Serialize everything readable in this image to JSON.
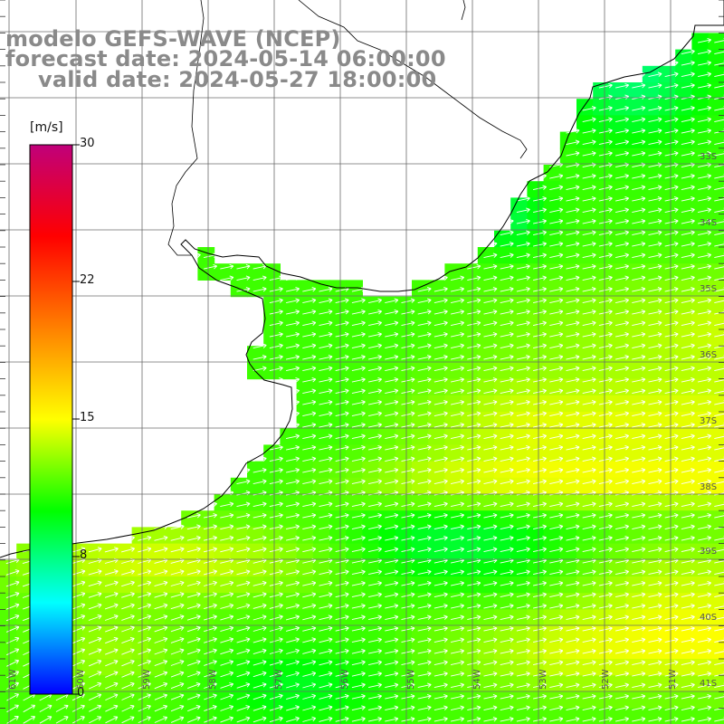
{
  "title": {
    "line1": "modelo GEFS-WAVE (NCEP)",
    "line2": "forecast date: 2024-05-14 06:00:00",
    "line3": "valid date: 2024-05-27 18:00:00"
  },
  "colorbar": {
    "units": "[m/s]",
    "min": 0,
    "max": 30,
    "ticks": [
      "30",
      "22",
      "15",
      "8",
      "0"
    ],
    "colors": [
      "#0000ff",
      "#00ffff",
      "#00ff00",
      "#ffff00",
      "#ff8000",
      "#ff0000",
      "#c0007a"
    ]
  },
  "latitude_labels": [
    "33S",
    "34S",
    "35S",
    "36S",
    "37S",
    "38S",
    "39S",
    "40S",
    "41S"
  ],
  "longitude_labels": [
    "61W",
    "60W",
    "59W",
    "58W",
    "57W",
    "56W",
    "55W",
    "54W",
    "53W",
    "52W",
    "51W"
  ],
  "map": {
    "variable": "wind speed with direction arrows",
    "lon_range": [
      -61.5,
      -50.5
    ],
    "lat_range": [
      -41.2,
      -31
    ],
    "land_color": "#ffffff",
    "gridlines": true,
    "prevailing_wind_direction": "from west-southwest"
  }
}
